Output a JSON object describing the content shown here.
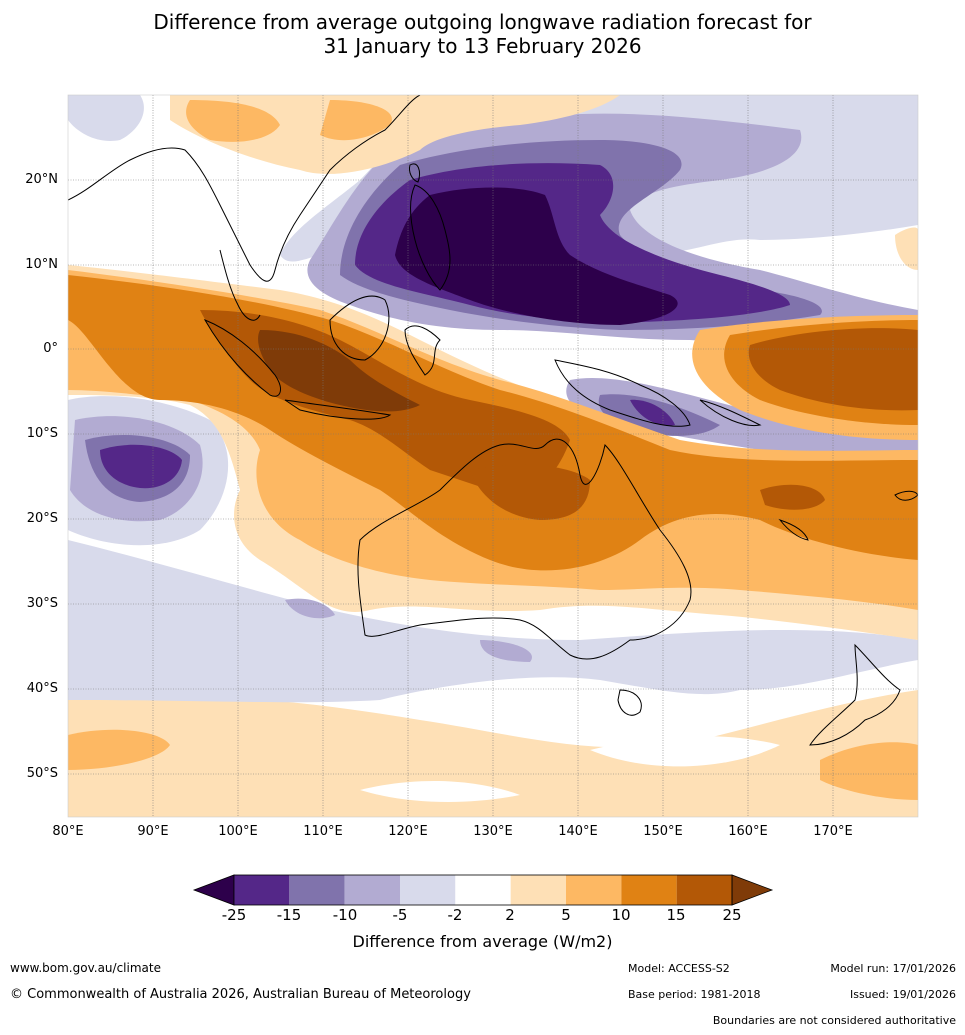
{
  "title": {
    "line1": "Difference from average outgoing longwave radiation forecast for",
    "line2": "31 January to 13 February 2026"
  },
  "axes": {
    "lat_labels": [
      "20°N",
      "10°N",
      "0°",
      "10°S",
      "20°S",
      "30°S",
      "40°S",
      "50°S"
    ],
    "lon_labels": [
      "80°E",
      "90°E",
      "100°E",
      "110°E",
      "120°E",
      "130°E",
      "140°E",
      "150°E",
      "160°E",
      "170°E"
    ]
  },
  "colorbar": {
    "ticks": [
      "-25",
      "-15",
      "-10",
      "-5",
      "-2",
      "2",
      "5",
      "10",
      "15",
      "25"
    ],
    "colors": [
      "#2d004b",
      "#542788",
      "#8073ac",
      "#b2abd2",
      "#d8daeb",
      "#ffffff",
      "#fee0b6",
      "#fdb863",
      "#e08214",
      "#b35806",
      "#7f3b08"
    ],
    "title": "Difference from average (W/m2)"
  },
  "footer": {
    "url": "www.bom.gov.au/climate",
    "copyright": "© Commonwealth of Australia 2026, Australian Bureau of Meteorology",
    "model": "Model: ACCESS-S2",
    "base_period": "Base period: 1981-2018",
    "model_run": "Model run: 17/01/2026",
    "issued": "Issued: 19/01/2026",
    "disclaimer": "Boundaries are not considered authoritative"
  }
}
